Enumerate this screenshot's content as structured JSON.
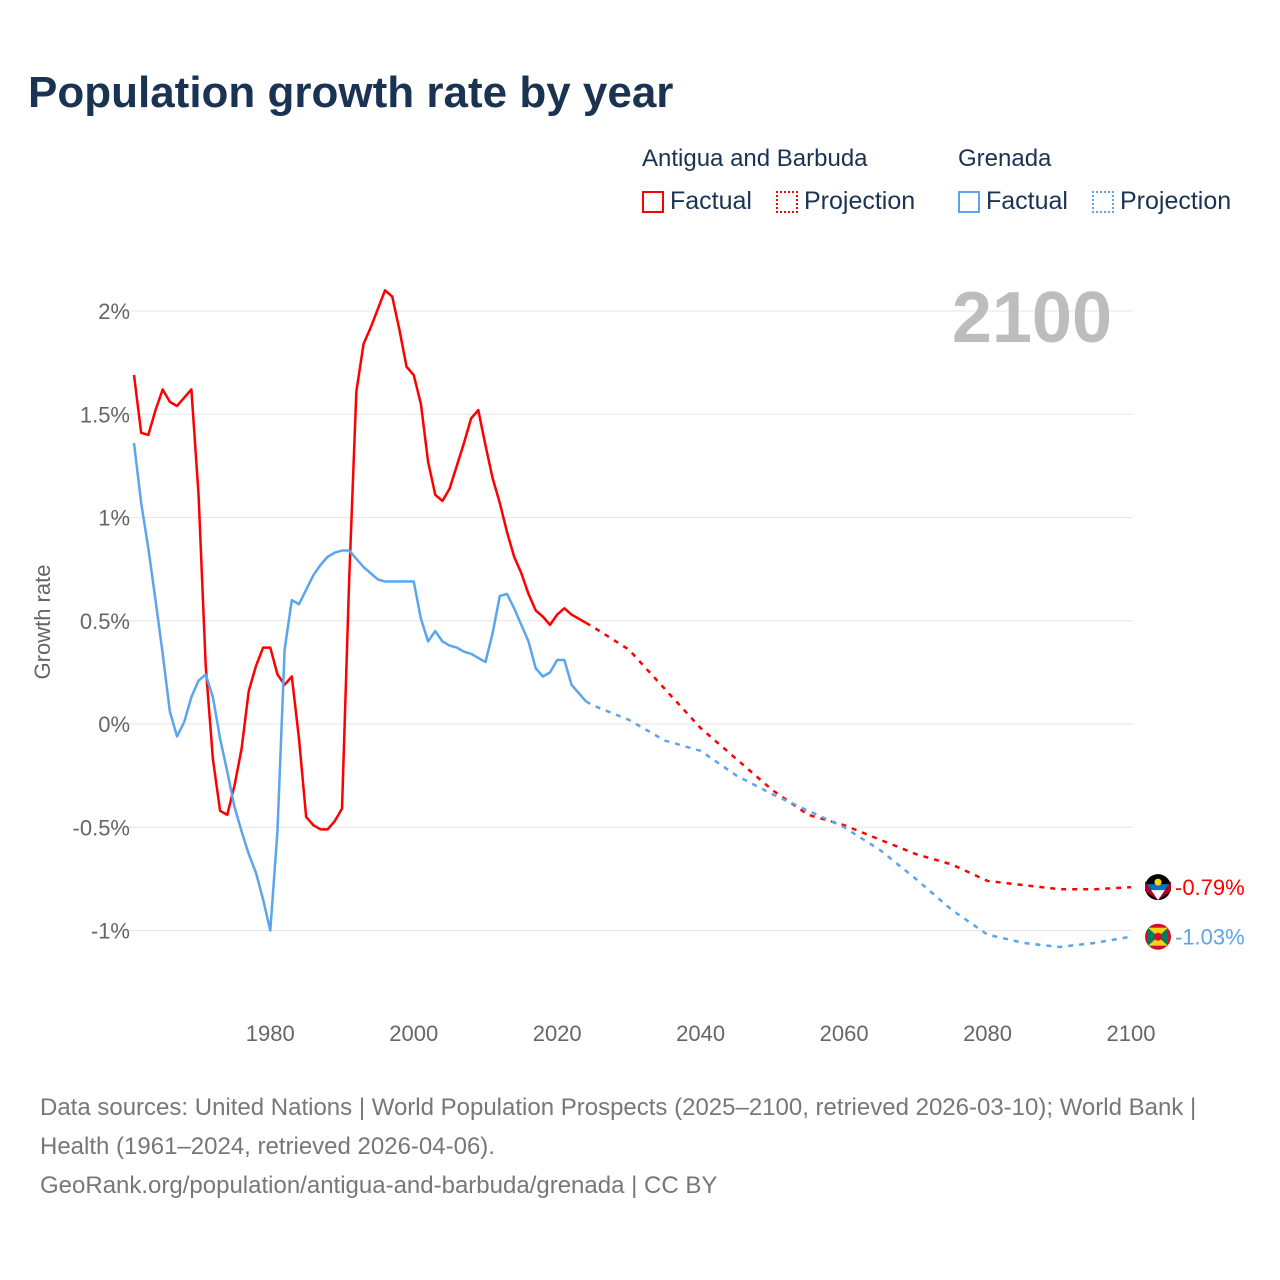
{
  "title": "Population growth rate by year",
  "legend": {
    "groups": [
      {
        "name": "Antigua and Barbuda",
        "factual": "Factual",
        "projection": "Projection"
      },
      {
        "name": "Grenada",
        "factual": "Factual",
        "projection": "Projection"
      }
    ]
  },
  "footer": {
    "sources": "Data sources: United Nations | World Population Prospects (2025–2100, retrieved 2026-03-10); World Bank | Health (1961–2024, retrieved 2026-04-06).",
    "credit": "GeoRank.org/population/antigua-and-barbuda/grenada | CC BY"
  },
  "chart_data": {
    "type": "line",
    "title": "Population growth rate by year",
    "ylabel": "Growth rate",
    "xlabel": "",
    "current_year_label": "2100",
    "xlim": [
      1961,
      2100
    ],
    "ylim": [
      -1.25,
      2.1
    ],
    "x_ticks": [
      1980,
      2000,
      2020,
      2040,
      2060,
      2080,
      2100
    ],
    "y_ticks": [
      2,
      1.5,
      1,
      0.5,
      0,
      -0.5,
      -1
    ],
    "y_tick_labels": [
      "2%",
      "1.5%",
      "1%",
      "0.5%",
      "0%",
      "-0.5%",
      "-1%"
    ],
    "grid": true,
    "legend_position": "top-right",
    "series": [
      {
        "name": "Antigua and Barbuda",
        "color": "#ff0000",
        "end_label": "-0.79%",
        "factual_x_start": 1961,
        "factual": [
          1.69,
          1.41,
          1.4,
          1.52,
          1.62,
          1.56,
          1.54,
          1.58,
          1.62,
          1.11,
          0.28,
          -0.17,
          -0.42,
          -0.44,
          -0.3,
          -0.12,
          0.16,
          0.28,
          0.37,
          0.37,
          0.24,
          0.19,
          0.23,
          -0.07,
          -0.45,
          -0.49,
          -0.51,
          -0.51,
          -0.47,
          -0.41,
          0.7,
          1.61,
          1.84,
          1.92,
          2.01,
          2.1,
          2.07,
          1.91,
          1.73,
          1.69,
          1.55,
          1.27,
          1.11,
          1.08,
          1.14,
          1.25,
          1.36,
          1.48,
          1.52,
          1.35,
          1.19,
          1.07,
          0.93,
          0.81,
          0.73,
          0.63,
          0.55,
          0.52,
          0.48,
          0.53,
          0.56,
          0.53,
          0.51,
          0.49
        ],
        "projection_x": [
          2024,
          2025,
          2030,
          2035,
          2040,
          2045,
          2050,
          2055,
          2060,
          2065,
          2070,
          2075,
          2080,
          2085,
          2090,
          2095,
          2100
        ],
        "projection": [
          0.49,
          0.47,
          0.36,
          0.17,
          -0.02,
          -0.17,
          -0.32,
          -0.44,
          -0.49,
          -0.56,
          -0.63,
          -0.68,
          -0.76,
          -0.78,
          -0.8,
          -0.8,
          -0.79
        ]
      },
      {
        "name": "Grenada",
        "color": "#5aa5ee",
        "end_label": "-1.03%",
        "factual_x_start": 1961,
        "factual": [
          1.36,
          1.07,
          0.85,
          0.6,
          0.34,
          0.06,
          -0.06,
          0.01,
          0.13,
          0.21,
          0.24,
          0.13,
          -0.07,
          -0.23,
          -0.4,
          -0.52,
          -0.63,
          -0.72,
          -0.85,
          -1.0,
          -0.52,
          0.36,
          0.6,
          0.58,
          0.65,
          0.72,
          0.77,
          0.81,
          0.83,
          0.84,
          0.84,
          0.8,
          0.76,
          0.73,
          0.7,
          0.69,
          0.69,
          0.69,
          0.69,
          0.69,
          0.51,
          0.4,
          0.45,
          0.4,
          0.38,
          0.37,
          0.35,
          0.34,
          0.32,
          0.3,
          0.44,
          0.62,
          0.63,
          0.56,
          0.48,
          0.4,
          0.27,
          0.23,
          0.25,
          0.31,
          0.31,
          0.19,
          0.15,
          0.11
        ],
        "projection_x": [
          2024,
          2025,
          2030,
          2035,
          2040,
          2045,
          2050,
          2055,
          2060,
          2065,
          2070,
          2075,
          2080,
          2085,
          2090,
          2095,
          2100
        ],
        "projection": [
          0.11,
          0.09,
          0.02,
          -0.08,
          -0.13,
          -0.25,
          -0.34,
          -0.42,
          -0.5,
          -0.61,
          -0.75,
          -0.9,
          -1.02,
          -1.06,
          -1.08,
          -1.06,
          -1.03
        ]
      }
    ]
  }
}
